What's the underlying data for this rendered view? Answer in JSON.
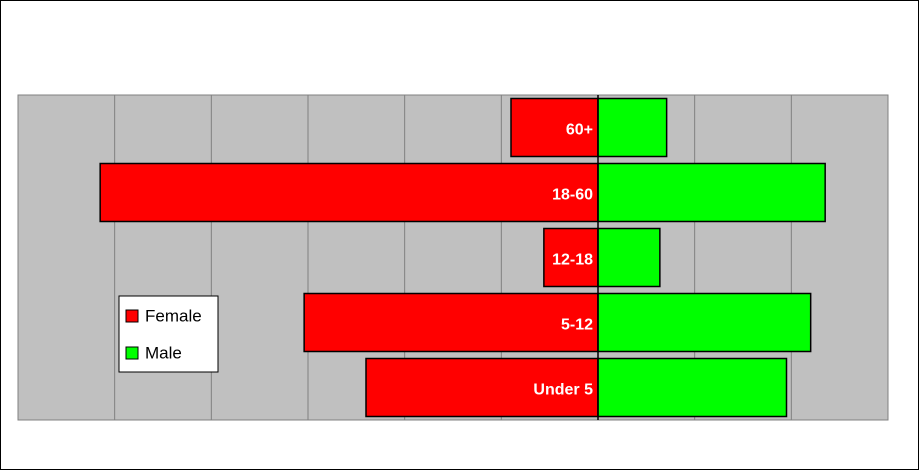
{
  "chart_data": {
    "type": "pyramid",
    "categories": [
      "60+",
      "18-60",
      "12-18",
      "5-12",
      "Under 5"
    ],
    "series": [
      {
        "name": "Female",
        "color": "#ff0000",
        "values": [
          -0.9,
          -5.15,
          -0.56,
          -3.04,
          -2.4
        ]
      },
      {
        "name": "Male",
        "color": "#00ff00",
        "values": [
          0.71,
          2.35,
          0.64,
          2.2,
          1.95
        ]
      }
    ],
    "xlim": [
      -6,
      3
    ],
    "xticks": [
      -6,
      -5,
      -4,
      -3,
      -2,
      -1,
      0,
      1,
      2,
      3
    ],
    "grid": true,
    "legend": "left"
  }
}
